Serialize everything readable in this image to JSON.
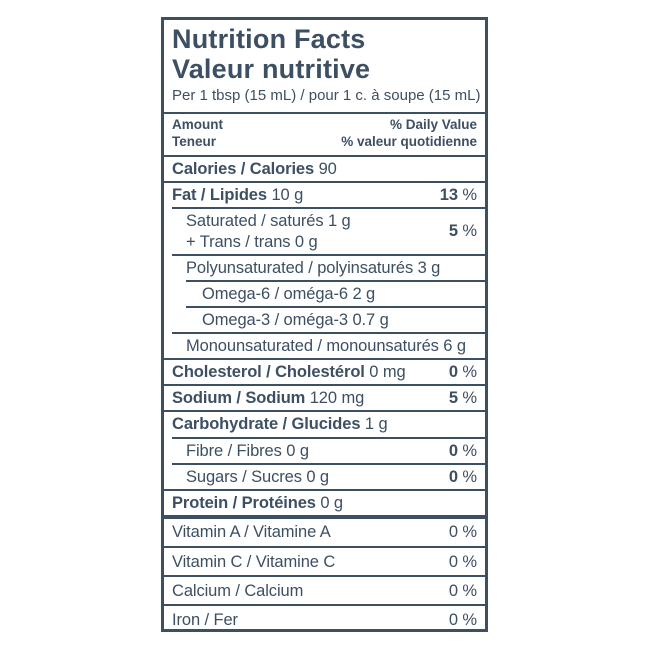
{
  "colors": {
    "ink": "#3d4f63",
    "background": "#ffffff"
  },
  "percent_symbol": "%",
  "label": {
    "title_en": "Nutrition Facts",
    "title_fr": "Valeur nutritive",
    "serving": "Per 1 tbsp (15 mL) / pour 1 c. à soupe (15 mL)",
    "amount_header": {
      "amount_en": "Amount",
      "amount_fr": "Teneur",
      "dv_en": "% Daily Value",
      "dv_fr": "% valeur quotidienne"
    },
    "rows": {
      "calories": {
        "label": "Calories / Calories",
        "amount": "90"
      },
      "fat": {
        "label": "Fat / Lipides",
        "amount": "10 g",
        "dv": "13"
      },
      "saturated_trans": {
        "line1_label": "Saturated / saturés",
        "line1_amount": "1 g",
        "line2_label": "+ Trans / trans",
        "line2_amount": "0 g",
        "dv": "5"
      },
      "polyunsaturated": {
        "label": "Polyunsaturated / polyinsaturés",
        "amount": "3 g"
      },
      "omega6": {
        "label": "Omega-6 / oméga-6",
        "amount": "2 g"
      },
      "omega3": {
        "label": "Omega-3 / oméga-3",
        "amount": "0.7 g"
      },
      "monounsaturated": {
        "label": "Monounsaturated / monounsaturés",
        "amount": "6 g"
      },
      "cholesterol": {
        "label": "Cholesterol / Cholestérol",
        "amount": "0 mg",
        "dv": "0"
      },
      "sodium": {
        "label": "Sodium / Sodium",
        "amount": "120 mg",
        "dv": "5"
      },
      "carbohydrate": {
        "label": "Carbohydrate / Glucides",
        "amount": "1 g"
      },
      "fibre": {
        "label": "Fibre / Fibres",
        "amount": "0 g",
        "dv": "0"
      },
      "sugars": {
        "label": "Sugars / Sucres",
        "amount": "0 g",
        "dv": "0"
      },
      "protein": {
        "label": "Protein / Protéines",
        "amount": "0 g"
      },
      "vitamin_a": {
        "label": "Vitamin A / Vitamine A",
        "dv": "0"
      },
      "vitamin_c": {
        "label": "Vitamin C / Vitamine C",
        "dv": "0"
      },
      "calcium": {
        "label": "Calcium / Calcium",
        "dv": "0"
      },
      "iron": {
        "label": "Iron / Fer",
        "dv": "0"
      }
    }
  }
}
